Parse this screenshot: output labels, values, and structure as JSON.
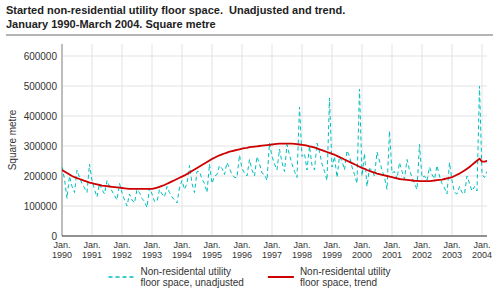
{
  "chart_data": {
    "type": "line",
    "title": "Started non-residential utility floor space.  Unadjusted and trend.",
    "subtitle": "January 1990-March 2004. Square metre",
    "ylabel": "Square metre",
    "ylim": [
      0,
      640000
    ],
    "yticks": [
      0,
      100000,
      200000,
      300000,
      400000,
      500000,
      600000
    ],
    "grid": true,
    "legend": "bottom",
    "categories": [
      "Jan.\n1990",
      null,
      null,
      null,
      null,
      null,
      null,
      null,
      null,
      null,
      null,
      null,
      "Jan.\n1991",
      null,
      null,
      null,
      null,
      null,
      null,
      null,
      null,
      null,
      null,
      null,
      "Jan.\n1992",
      null,
      null,
      null,
      null,
      null,
      null,
      null,
      null,
      null,
      null,
      null,
      "Jan.\n1993",
      null,
      null,
      null,
      null,
      null,
      null,
      null,
      null,
      null,
      null,
      null,
      "Jan.\n1994",
      null,
      null,
      null,
      null,
      null,
      null,
      null,
      null,
      null,
      null,
      null,
      "Jan.\n1995",
      null,
      null,
      null,
      null,
      null,
      null,
      null,
      null,
      null,
      null,
      null,
      "Jan.\n1996",
      null,
      null,
      null,
      null,
      null,
      null,
      null,
      null,
      null,
      null,
      null,
      "Jan.\n1997",
      null,
      null,
      null,
      null,
      null,
      null,
      null,
      null,
      null,
      null,
      null,
      "Jan.\n1998",
      null,
      null,
      null,
      null,
      null,
      null,
      null,
      null,
      null,
      null,
      null,
      "Jan.\n1999",
      null,
      null,
      null,
      null,
      null,
      null,
      null,
      null,
      null,
      null,
      null,
      "Jan.\n2000",
      null,
      null,
      null,
      null,
      null,
      null,
      null,
      null,
      null,
      null,
      null,
      "Jan.\n2001",
      null,
      null,
      null,
      null,
      null,
      null,
      null,
      null,
      null,
      null,
      null,
      "Jan.\n2002",
      null,
      null,
      null,
      null,
      null,
      null,
      null,
      null,
      null,
      null,
      null,
      "Jan.\n2003",
      null,
      null,
      null,
      null,
      null,
      null,
      null,
      null,
      null,
      null,
      null,
      "Jan.\n2004",
      null,
      null
    ],
    "series": [
      {
        "name": "Non-residental utility\nfloor space, unadjusted",
        "color": "#00BFBF",
        "line_style": "dashed",
        "values": [
          230000,
          190000,
          125000,
          200000,
          165000,
          145000,
          220000,
          195000,
          175000,
          160000,
          145000,
          240000,
          185000,
          155000,
          130000,
          175000,
          155000,
          140000,
          185000,
          165000,
          150000,
          135000,
          120000,
          175000,
          145000,
          120000,
          100000,
          140000,
          120000,
          110000,
          155000,
          145000,
          125000,
          115000,
          95000,
          160000,
          140000,
          115000,
          115000,
          155000,
          140000,
          130000,
          165000,
          145000,
          130000,
          120000,
          110000,
          160000,
          185000,
          155000,
          175000,
          235000,
          175000,
          145000,
          215000,
          215000,
          190000,
          175000,
          145000,
          240000,
          175000,
          200000,
          205000,
          235000,
          225000,
          205000,
          245000,
          225000,
          205000,
          195000,
          195000,
          270000,
          225000,
          210000,
          200000,
          255000,
          220000,
          200000,
          265000,
          240000,
          210000,
          205000,
          185000,
          310000,
          265000,
          240000,
          220000,
          290000,
          245000,
          215000,
          305000,
          270000,
          240000,
          215000,
          195000,
          430000,
          265000,
          275000,
          220000,
          300000,
          235000,
          220000,
          310000,
          280000,
          240000,
          215000,
          185000,
          460000,
          230000,
          265000,
          195000,
          265000,
          250000,
          220000,
          285000,
          265000,
          230000,
          205000,
          175000,
          490000,
          200000,
          275000,
          165000,
          225000,
          220000,
          200000,
          280000,
          250000,
          220000,
          195000,
          155000,
          350000,
          210000,
          215000,
          190000,
          245000,
          215000,
          190000,
          255000,
          220000,
          195000,
          175000,
          155000,
          305000,
          195000,
          200000,
          185000,
          230000,
          205000,
          190000,
          235000,
          200000,
          175000,
          160000,
          140000,
          245000,
          185000,
          145000,
          140000,
          165000,
          145000,
          140000,
          200000,
          175000,
          150000,
          165000,
          150000,
          500000,
          205000,
          195000,
          215000
        ]
      },
      {
        "name": "Non-residental utility\nfloor space, trend",
        "color": "#CC0000",
        "line_style": "solid",
        "values": [
          220000,
          215000,
          210000,
          205000,
          200000,
          196000,
          193000,
          190000,
          187000,
          184000,
          181000,
          178000,
          176000,
          174000,
          172000,
          170000,
          168000,
          167000,
          166000,
          165000,
          164000,
          163000,
          162000,
          161000,
          160000,
          159000,
          158000,
          157000,
          157000,
          157000,
          157000,
          157000,
          157000,
          157000,
          157000,
          157000,
          157000,
          159000,
          161000,
          164000,
          167000,
          170000,
          174000,
          178000,
          182000,
          186000,
          190000,
          194000,
          198000,
          202000,
          207000,
          212000,
          217000,
          222000,
          227000,
          232000,
          237000,
          242000,
          247000,
          252000,
          257000,
          261000,
          265000,
          269000,
          272000,
          275000,
          278000,
          281000,
          283000,
          285000,
          287000,
          289000,
          291000,
          293000,
          294000,
          296000,
          297000,
          298000,
          299000,
          300000,
          301000,
          302000,
          303000,
          304000,
          305000,
          306000,
          307000,
          308000,
          308000,
          308000,
          308000,
          308000,
          308000,
          307000,
          306000,
          305000,
          304000,
          303000,
          301000,
          299000,
          297000,
          295000,
          292000,
          289000,
          286000,
          283000,
          280000,
          277000,
          274000,
          271000,
          267000,
          263000,
          259000,
          255000,
          251000,
          247000,
          243000,
          239000,
          235000,
          231000,
          227000,
          224000,
          220000,
          217000,
          214000,
          211000,
          208000,
          206000,
          204000,
          202000,
          200000,
          198000,
          196000,
          194000,
          192000,
          190000,
          189000,
          188000,
          187000,
          186000,
          185000,
          184000,
          184000,
          183000,
          183000,
          183000,
          183000,
          183000,
          184000,
          185000,
          186000,
          187000,
          188000,
          190000,
          192000,
          194000,
          196000,
          200000,
          204000,
          208000,
          213000,
          218000,
          224000,
          230000,
          237000,
          244000,
          251000,
          258000,
          248000,
          248000,
          250000
        ]
      }
    ]
  }
}
